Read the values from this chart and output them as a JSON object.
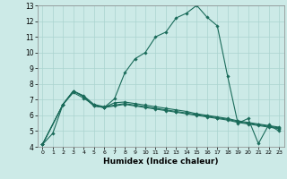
{
  "xlabel": "Humidex (Indice chaleur)",
  "bg_color": "#cceae7",
  "line_color": "#1a6b5a",
  "grid_color": "#aad4d0",
  "xlim": [
    -0.5,
    23.5
  ],
  "ylim": [
    4,
    13
  ],
  "xticks": [
    0,
    1,
    2,
    3,
    4,
    5,
    6,
    7,
    8,
    9,
    10,
    11,
    12,
    13,
    14,
    15,
    16,
    17,
    18,
    19,
    20,
    21,
    22,
    23
  ],
  "yticks": [
    4,
    5,
    6,
    7,
    8,
    9,
    10,
    11,
    12,
    13
  ],
  "lines": [
    {
      "x": [
        0,
        1,
        2,
        3,
        4,
        5,
        6,
        7,
        8,
        9,
        10,
        11,
        12,
        13,
        14,
        15,
        16,
        17,
        18,
        19,
        20,
        21,
        22,
        23
      ],
      "y": [
        4.15,
        4.85,
        6.7,
        7.55,
        7.2,
        6.6,
        6.5,
        7.05,
        8.7,
        9.6,
        10.0,
        11.0,
        11.3,
        12.2,
        12.5,
        13.0,
        12.25,
        11.7,
        8.5,
        5.5,
        5.8,
        4.2,
        5.4,
        5.0
      ]
    },
    {
      "x": [
        0,
        2,
        3,
        4,
        5,
        6,
        7,
        8,
        9,
        10,
        11,
        12,
        13,
        14,
        15,
        16,
        17,
        18,
        19,
        20,
        21,
        22,
        23
      ],
      "y": [
        4.15,
        6.7,
        7.55,
        7.2,
        6.6,
        6.5,
        6.8,
        6.85,
        6.75,
        6.65,
        6.55,
        6.45,
        6.35,
        6.25,
        6.1,
        6.0,
        5.9,
        5.8,
        5.65,
        5.55,
        5.45,
        5.35,
        5.25
      ]
    },
    {
      "x": [
        0,
        2,
        3,
        4,
        5,
        6,
        7,
        8,
        9,
        10,
        11,
        12,
        13,
        14,
        15,
        16,
        17,
        18,
        19,
        20,
        21,
        22,
        23
      ],
      "y": [
        4.15,
        6.7,
        7.55,
        7.25,
        6.7,
        6.55,
        6.65,
        6.75,
        6.65,
        6.55,
        6.45,
        6.35,
        6.25,
        6.15,
        6.05,
        5.95,
        5.85,
        5.75,
        5.6,
        5.5,
        5.4,
        5.3,
        5.2
      ]
    },
    {
      "x": [
        0,
        2,
        3,
        4,
        5,
        6,
        7,
        8,
        9,
        10,
        11,
        12,
        13,
        14,
        15,
        16,
        17,
        18,
        19,
        20,
        21,
        22,
        23
      ],
      "y": [
        4.15,
        6.7,
        7.45,
        7.1,
        6.65,
        6.5,
        6.6,
        6.7,
        6.6,
        6.5,
        6.4,
        6.3,
        6.2,
        6.1,
        6.0,
        5.9,
        5.8,
        5.7,
        5.55,
        5.45,
        5.35,
        5.25,
        5.15
      ]
    }
  ]
}
